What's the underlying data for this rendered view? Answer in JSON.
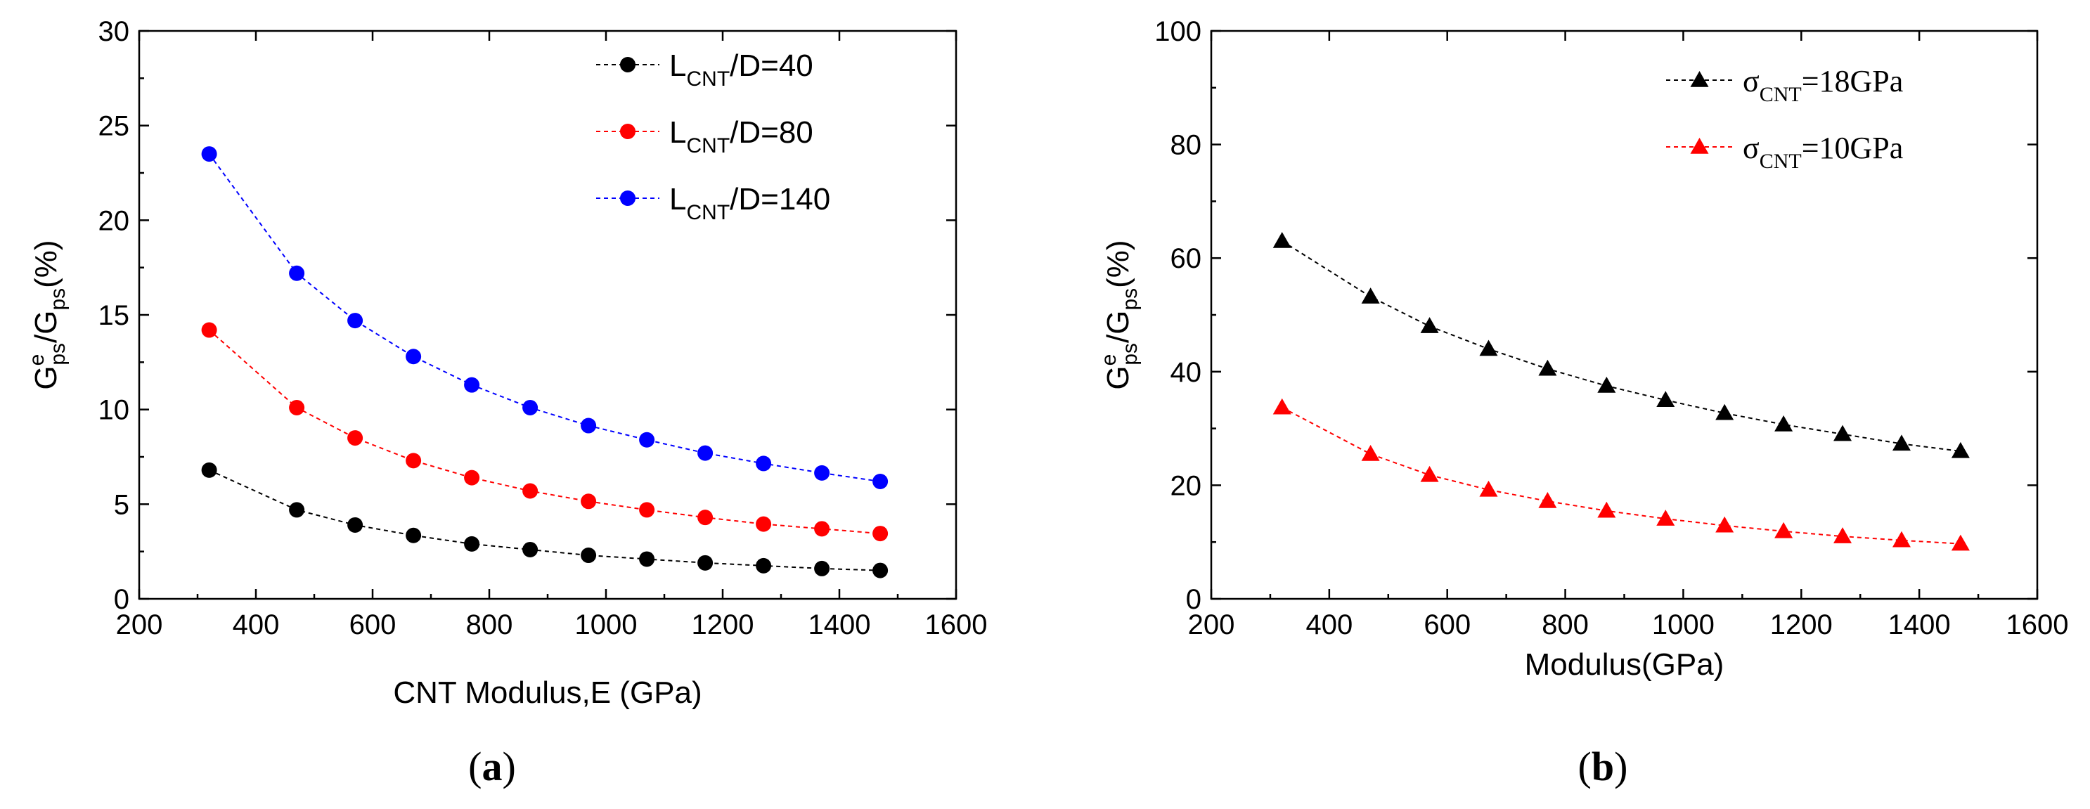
{
  "chart_data": [
    {
      "type": "line",
      "panel_label": "a",
      "xlabel": "CNT Modulus,E (GPa)",
      "ylabel": {
        "main": "G",
        "sup": "e",
        "sub": "ps",
        "mid": "/G",
        "sub2": "ps",
        "tail": "(%)"
      },
      "xlim": [
        200,
        1600
      ],
      "ylim": [
        0,
        30
      ],
      "xticks": [
        "200",
        "400",
        "600",
        "800",
        "1000",
        "1200",
        "1400",
        "1600"
      ],
      "yticks": [
        "0",
        "5",
        "10",
        "15",
        "20",
        "25",
        "30"
      ],
      "legend_position": "top-right",
      "x": [
        320,
        470,
        570,
        670,
        770,
        870,
        970,
        1070,
        1170,
        1270,
        1370,
        1470
      ],
      "series": [
        {
          "name": "L_CNT/D=40",
          "label_main": "L",
          "label_sub": "CNT",
          "label_rest": "/D=40",
          "marker": "circle",
          "color": "#000000",
          "values": [
            6.8,
            4.7,
            3.9,
            3.35,
            2.9,
            2.6,
            2.3,
            2.1,
            1.9,
            1.75,
            1.6,
            1.5
          ]
        },
        {
          "name": "L_CNT/D=80",
          "label_main": "L",
          "label_sub": "CNT",
          "label_rest": "/D=80",
          "marker": "circle",
          "color": "#ff0000",
          "values": [
            14.2,
            10.1,
            8.5,
            7.3,
            6.4,
            5.7,
            5.15,
            4.7,
            4.3,
            3.95,
            3.7,
            3.45
          ]
        },
        {
          "name": "L_CNT/D=140",
          "label_main": "L",
          "label_sub": "CNT",
          "label_rest": "/D=140",
          "marker": "circle",
          "color": "#0000ff",
          "values": [
            23.5,
            17.2,
            14.7,
            12.8,
            11.3,
            10.1,
            9.15,
            8.4,
            7.7,
            7.15,
            6.65,
            6.2
          ]
        }
      ]
    },
    {
      "type": "line",
      "panel_label": "b",
      "xlabel": "Modulus(GPa)",
      "ylabel": {
        "main": "G",
        "sup": "e",
        "sub": "ps",
        "mid": "/G",
        "sub2": "ps",
        "tail": "(%)"
      },
      "xlim": [
        200,
        1600
      ],
      "ylim": [
        0,
        100
      ],
      "xticks": [
        "200",
        "400",
        "600",
        "800",
        "1000",
        "1200",
        "1400",
        "1600"
      ],
      "yticks": [
        "0",
        "20",
        "40",
        "60",
        "80",
        "100"
      ],
      "legend_position": "top-right",
      "x": [
        320,
        470,
        570,
        670,
        770,
        870,
        970,
        1070,
        1170,
        1270,
        1370,
        1470
      ],
      "series": [
        {
          "name": "σ_CNT=18GPa",
          "label_main": "σ",
          "label_sub": "CNT",
          "label_rest": "=18GPa",
          "marker": "triangle",
          "color": "#000000",
          "values": [
            63,
            53.2,
            48,
            44,
            40.5,
            37.5,
            35,
            32.7,
            30.7,
            29,
            27.3,
            26
          ]
        },
        {
          "name": "σ_CNT=10GPa",
          "label_main": "σ",
          "label_sub": "CNT",
          "label_rest": "=10GPa",
          "marker": "triangle",
          "color": "#ff0000",
          "values": [
            33.7,
            25.5,
            21.8,
            19.2,
            17.2,
            15.5,
            14.1,
            12.9,
            11.9,
            11,
            10.3,
            9.7
          ]
        }
      ]
    }
  ]
}
